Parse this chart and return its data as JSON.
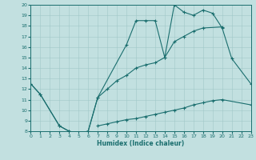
{
  "background_color": "#c2e0e0",
  "grid_color": "#a0c8c8",
  "line_color": "#1a6e6e",
  "xlabel": "Humidex (Indice chaleur)",
  "xlim": [
    0,
    23
  ],
  "ylim": [
    8,
    20
  ],
  "s1_x": [
    0,
    1,
    3,
    4,
    5,
    6,
    7,
    10,
    11,
    12,
    13,
    14,
    15,
    16,
    17,
    18,
    19,
    20,
    21,
    23
  ],
  "s1_y": [
    12.5,
    11.5,
    8.5,
    8.0,
    7.8,
    8.0,
    11.2,
    16.2,
    18.5,
    18.5,
    18.5,
    15.0,
    20.0,
    19.3,
    19.0,
    19.5,
    19.2,
    17.8,
    14.9,
    12.5
  ],
  "s2_x": [
    0,
    1,
    3,
    4,
    5,
    6,
    7,
    8,
    9,
    10,
    11,
    12,
    13,
    14,
    15,
    16,
    17,
    18,
    20
  ],
  "s2_y": [
    12.5,
    11.5,
    8.5,
    8.0,
    7.8,
    8.0,
    11.2,
    12.0,
    12.8,
    13.3,
    14.0,
    14.3,
    14.5,
    15.0,
    16.5,
    17.0,
    17.5,
    17.8,
    17.9
  ],
  "s3_x": [
    7,
    8,
    9,
    10,
    11,
    12,
    13,
    14,
    15,
    16,
    17,
    18,
    19,
    20,
    23
  ],
  "s3_y": [
    8.5,
    8.7,
    8.9,
    9.1,
    9.2,
    9.4,
    9.6,
    9.8,
    10.0,
    10.2,
    10.5,
    10.7,
    10.9,
    11.0,
    10.5
  ],
  "xlabel_fontsize": 5.5,
  "tick_fontsize": 4.5,
  "marker_size": 3,
  "linewidth": 0.8
}
